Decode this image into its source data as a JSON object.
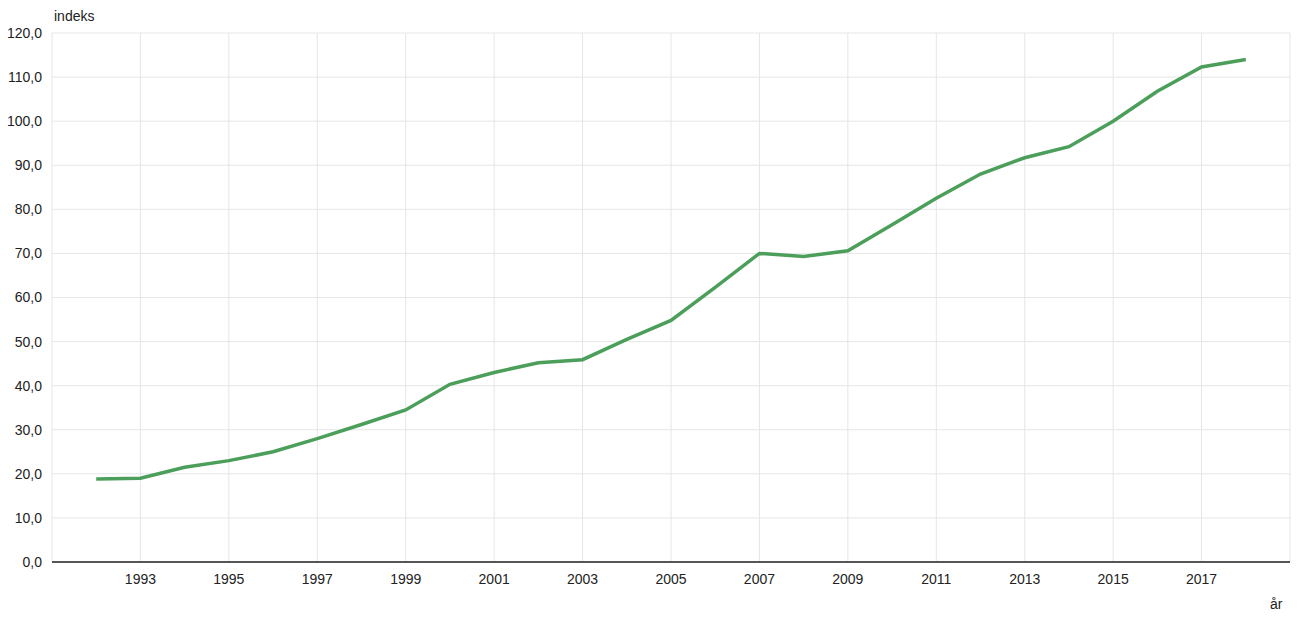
{
  "chart_data": {
    "type": "line",
    "x_label": "år",
    "y_label": "indeks",
    "x": [
      1992,
      1993,
      1994,
      1995,
      1996,
      1997,
      1998,
      1999,
      2000,
      2001,
      2002,
      2003,
      2004,
      2005,
      2006,
      2007,
      2008,
      2009,
      2010,
      2011,
      2012,
      2013,
      2014,
      2015,
      2016,
      2017,
      2018
    ],
    "values": [
      18.8,
      19.0,
      21.5,
      23.0,
      25.0,
      28.0,
      31.2,
      34.5,
      40.3,
      43.0,
      45.2,
      45.9,
      50.5,
      54.8,
      62.3,
      70.0,
      69.3,
      70.6,
      76.5,
      82.5,
      88.0,
      91.7,
      94.2,
      100.0,
      106.8,
      112.3,
      114.0
    ],
    "color": "#4c9f5a",
    "xlim": [
      1991,
      2019
    ],
    "xticks": [
      1993,
      1995,
      1997,
      1999,
      2001,
      2003,
      2005,
      2007,
      2009,
      2011,
      2013,
      2015,
      2017
    ],
    "ylim": [
      0,
      120
    ],
    "yticks": [
      {
        "value": 0,
        "label": "0,0"
      },
      {
        "value": 10,
        "label": "10,0"
      },
      {
        "value": 20,
        "label": "20,0"
      },
      {
        "value": 30,
        "label": "30,0"
      },
      {
        "value": 40,
        "label": "40,0"
      },
      {
        "value": 50,
        "label": "50,0"
      },
      {
        "value": 60,
        "label": "60,0"
      },
      {
        "value": 70,
        "label": "70,0"
      },
      {
        "value": 80,
        "label": "80,0"
      },
      {
        "value": 90,
        "label": "90,0"
      },
      {
        "value": 100,
        "label": "100,0"
      },
      {
        "value": 110,
        "label": "110,0"
      },
      {
        "value": 120,
        "label": "120,0"
      }
    ],
    "grid": true
  }
}
